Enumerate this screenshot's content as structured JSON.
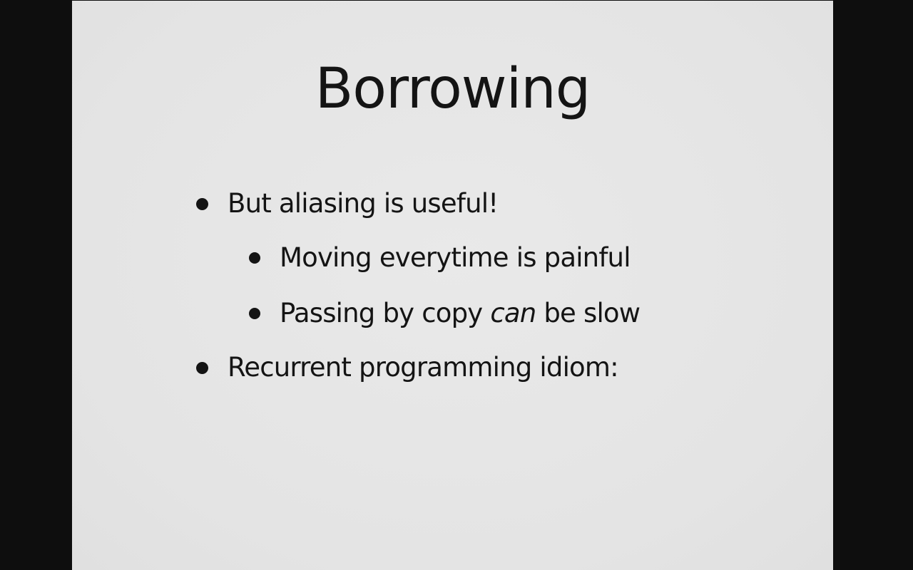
{
  "slide": {
    "title": "Borrowing",
    "bullets": [
      {
        "level": 1,
        "text": "But aliasing is useful!"
      },
      {
        "level": 2,
        "text": "Moving everytime is painful"
      },
      {
        "level": 2,
        "before": "Passing by copy ",
        "emphasis": "can",
        "after": " be slow"
      },
      {
        "level": 1,
        "text": "Recurrent programming idiom:"
      }
    ]
  }
}
